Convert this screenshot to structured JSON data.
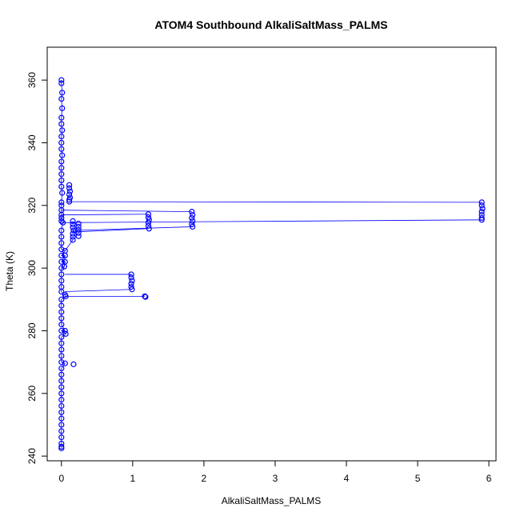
{
  "chart_data": {
    "type": "scatter",
    "title": "ATOM4 Southbound AlkaliSaltMass_PALMS",
    "xlabel": "AlkaliSaltMass_PALMS",
    "ylabel": "Theta (K)",
    "xlim": [
      -0.2,
      6.1
    ],
    "ylim": [
      238.5,
      370.5
    ],
    "x_ticks": [
      0,
      1,
      2,
      3,
      4,
      5,
      6
    ],
    "y_ticks": [
      240,
      260,
      280,
      300,
      320,
      340,
      360
    ],
    "grid": false,
    "legend": "none",
    "colors": {
      "points": "#0000ff",
      "lines": "#0000ff",
      "axes": "#000000"
    },
    "marker": "open-circle",
    "series": [
      {
        "style": "points-and-lines",
        "points": [
          [
            0.0,
            360.0
          ],
          [
            0.0,
            359.0
          ],
          [
            0.01,
            356.0
          ],
          [
            0.0,
            354.0
          ],
          [
            0.01,
            351.0
          ],
          [
            0.0,
            348.0
          ],
          [
            0.0,
            346.0
          ],
          [
            0.01,
            344.0
          ],
          [
            0.0,
            342.0
          ],
          [
            0.0,
            340.0
          ],
          [
            0.0,
            338.0
          ],
          [
            0.01,
            336.0
          ],
          [
            0.0,
            334.0
          ],
          [
            0.0,
            332.0
          ],
          [
            0.0,
            330.0
          ],
          [
            0.0,
            328.0
          ],
          [
            0.0,
            326.0
          ],
          [
            0.01,
            324.0
          ],
          [
            0.11,
            326.5
          ],
          [
            0.11,
            325.5
          ],
          [
            0.12,
            324.5
          ],
          [
            0.11,
            323.5
          ],
          [
            0.12,
            322.5
          ],
          [
            0.11,
            321.8
          ],
          [
            0.11,
            321.2
          ],
          [
            5.9,
            321.0
          ],
          [
            5.9,
            320.0
          ],
          [
            5.91,
            319.0
          ],
          [
            5.9,
            318.0
          ],
          [
            5.9,
            317.0
          ],
          [
            5.9,
            316.0
          ],
          [
            5.9,
            315.4
          ],
          [
            0.0,
            321.0
          ],
          [
            0.0,
            320.0
          ],
          [
            0.0,
            318.5
          ],
          [
            1.83,
            318.0
          ],
          [
            1.84,
            317.0
          ],
          [
            1.83,
            316.0
          ],
          [
            1.84,
            315.0
          ],
          [
            1.83,
            314.0
          ],
          [
            1.84,
            313.2
          ],
          [
            1.22,
            317.2
          ],
          [
            1.22,
            316.2
          ],
          [
            1.23,
            315.4
          ],
          [
            1.22,
            314.5
          ],
          [
            1.22,
            313.5
          ],
          [
            1.23,
            312.6
          ],
          [
            0.0,
            317.0
          ],
          [
            0.0,
            316.0
          ],
          [
            0.0,
            315.0
          ],
          [
            0.02,
            314.5
          ],
          [
            0.16,
            315.0
          ],
          [
            0.16,
            314.0
          ],
          [
            0.16,
            313.0
          ],
          [
            0.17,
            312.0
          ],
          [
            0.16,
            311.0
          ],
          [
            0.16,
            310.0
          ],
          [
            0.16,
            309.0
          ],
          [
            0.24,
            314.2
          ],
          [
            0.24,
            313.2
          ],
          [
            0.24,
            312.2
          ],
          [
            0.24,
            311.2
          ],
          [
            0.24,
            310.2
          ],
          [
            0.0,
            312.0
          ],
          [
            0.0,
            310.0
          ],
          [
            0.0,
            308.0
          ],
          [
            0.0,
            306.0
          ],
          [
            0.05,
            305.5
          ],
          [
            0.05,
            304.0
          ],
          [
            0.05,
            302.0
          ],
          [
            0.04,
            300.5
          ],
          [
            0.0,
            304.0
          ],
          [
            0.0,
            302.0
          ],
          [
            0.0,
            300.0
          ],
          [
            0.98,
            298.0
          ],
          [
            0.98,
            297.0
          ],
          [
            0.99,
            296.0
          ],
          [
            0.98,
            295.0
          ],
          [
            0.98,
            294.0
          ],
          [
            0.99,
            293.2
          ],
          [
            0.0,
            298.0
          ],
          [
            0.0,
            296.0
          ],
          [
            0.0,
            294.0
          ],
          [
            0.0,
            292.5
          ],
          [
            0.05,
            291.5
          ],
          [
            0.06,
            291.0
          ],
          [
            1.17,
            291.0
          ],
          [
            1.18,
            290.8
          ],
          [
            0.0,
            290.0
          ],
          [
            0.0,
            288.0
          ],
          [
            0.0,
            286.0
          ],
          [
            0.0,
            284.0
          ],
          [
            0.0,
            282.0
          ],
          [
            0.0,
            280.0
          ],
          [
            0.05,
            280.0
          ],
          [
            0.06,
            279.0
          ],
          [
            0.0,
            278.0
          ],
          [
            0.0,
            276.0
          ],
          [
            0.0,
            274.0
          ],
          [
            0.0,
            272.0
          ],
          [
            0.0,
            270.0
          ],
          [
            0.05,
            269.6
          ],
          [
            0.17,
            269.3
          ],
          [
            0.0,
            268.0
          ],
          [
            0.0,
            266.0
          ],
          [
            0.0,
            264.0
          ],
          [
            0.0,
            262.0
          ],
          [
            0.0,
            260.0
          ],
          [
            0.0,
            258.0
          ],
          [
            0.0,
            256.0
          ],
          [
            0.0,
            254.0
          ],
          [
            0.0,
            252.0
          ],
          [
            0.0,
            250.0
          ],
          [
            0.0,
            248.0
          ],
          [
            0.0,
            246.0
          ],
          [
            0.0,
            244.0
          ],
          [
            0.0,
            243.0
          ],
          [
            0.0,
            242.5
          ]
        ],
        "connectors": [
          [
            [
              0.11,
              321.2
            ],
            [
              5.9,
              321.0
            ]
          ],
          [
            [
              0.0,
              318.5
            ],
            [
              1.83,
              318.0
            ]
          ],
          [
            [
              0.0,
              317.0
            ],
            [
              1.22,
              317.2
            ]
          ],
          [
            [
              0.02,
              314.5
            ],
            [
              5.9,
              315.4
            ]
          ],
          [
            [
              0.16,
              312.0
            ],
            [
              1.84,
              313.2
            ]
          ],
          [
            [
              0.16,
              311.5
            ],
            [
              1.22,
              312.6
            ]
          ],
          [
            [
              0.05,
              298.0
            ],
            [
              0.98,
              298.0
            ]
          ],
          [
            [
              0.05,
              292.5
            ],
            [
              0.99,
              293.2
            ]
          ],
          [
            [
              0.06,
              291.0
            ],
            [
              1.17,
              291.0
            ]
          ],
          [
            [
              0.05,
              305.5
            ],
            [
              0.16,
              309.0
            ]
          ],
          [
            [
              0.04,
              300.5
            ],
            [
              0.05,
              304.0
            ]
          ]
        ]
      }
    ]
  }
}
